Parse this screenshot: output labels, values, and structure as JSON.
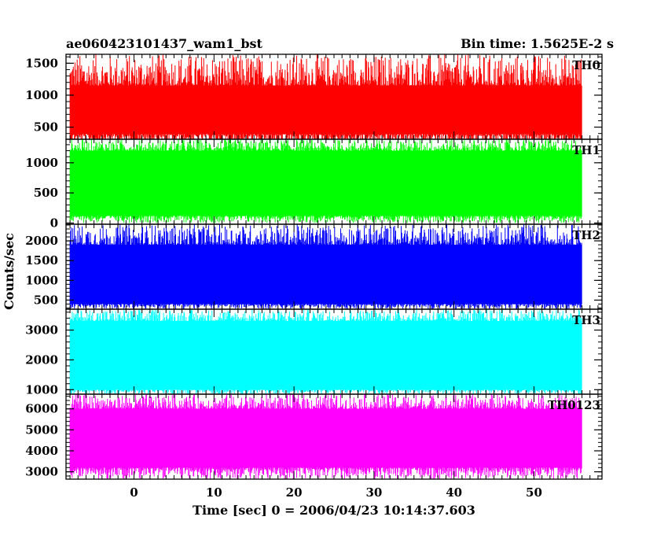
{
  "header": {
    "left": "ae060423101437_wam1_bst",
    "right": "Bin time: 1.5625E-2 s"
  },
  "chart_data": {
    "type": "line",
    "title": "ae060423101437_wam1_bst",
    "bin_time": "Bin time: 1.5625E-2 s",
    "xlabel": "Time [sec] 0 = 2006/04/23 10:14:37.603",
    "ylabel": "Counts/sec",
    "xlim": [
      -8.5,
      58.5
    ],
    "data_xrange": [
      -8,
      56
    ],
    "xticks": [
      0,
      10,
      20,
      30,
      40,
      50
    ],
    "grid": false,
    "panels": [
      {
        "name": "TH0",
        "color": "#ff0000",
        "ylim": [
          310,
          1640
        ],
        "yticks": [
          500,
          1000,
          1500
        ],
        "baseline": 670,
        "band": [
          390,
          1150
        ],
        "spike_range": [
          150,
          1640
        ]
      },
      {
        "name": "TH1",
        "color": "#00ff00",
        "ylim": [
          -20,
          1390
        ],
        "yticks": [
          0,
          500,
          1000
        ],
        "baseline": 640,
        "band": [
          120,
          1200
        ],
        "spike_range": [
          0,
          1390
        ]
      },
      {
        "name": "TH2",
        "color": "#0000ff",
        "ylim": [
          270,
          2420
        ],
        "yticks": [
          500,
          1000,
          1500,
          2000
        ],
        "baseline": 1150,
        "band": [
          400,
          1900
        ],
        "spike_range": [
          270,
          2420
        ]
      },
      {
        "name": "TH3",
        "color": "#00ffff",
        "ylim": [
          850,
          3700
        ],
        "yticks": [
          1000,
          2000,
          3000
        ],
        "baseline": 2200,
        "band": [
          1000,
          3300
        ],
        "spike_range": [
          850,
          3700
        ]
      },
      {
        "name": "TH0123",
        "color": "#ff00ff",
        "ylim": [
          2650,
          6700
        ],
        "yticks": [
          3000,
          4000,
          5000,
          6000
        ],
        "baseline": 4500,
        "band": [
          3200,
          6000
        ],
        "spike_range": [
          2650,
          6700
        ]
      }
    ]
  }
}
